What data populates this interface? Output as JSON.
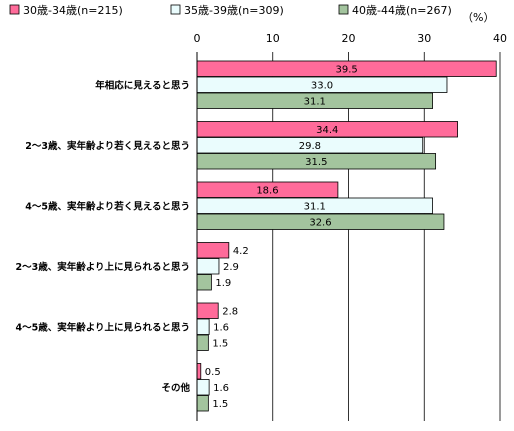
{
  "chart_data": {
    "type": "bar",
    "orientation": "horizontal",
    "unit": "（%）",
    "xlim": [
      0,
      40
    ],
    "xticks": [
      "0",
      "10",
      "20",
      "30",
      "40"
    ],
    "categories": [
      "年相応に見えると思う",
      "2～3歳、実年齢より若く見えると思う",
      "4～5歳、実年齢より若く見えると思う",
      "2～3歳、実年齢より上に見られると思う",
      "4～5歳、実年齢より上に見られると思う",
      "その他"
    ],
    "series": [
      {
        "name": "30歳-34歳(n=215)",
        "values": [
          39.5,
          34.4,
          18.6,
          4.2,
          2.8,
          0.5
        ],
        "color": "#ff6b9a"
      },
      {
        "name": "35歳-39歳(n=309)",
        "values": [
          33.0,
          29.8,
          31.1,
          2.9,
          1.6,
          1.6
        ],
        "color": "#eafcfd"
      },
      {
        "name": "40歳-44歳(n=267)",
        "values": [
          31.1,
          31.5,
          32.6,
          1.9,
          1.5,
          1.5
        ],
        "color": "#a3c49e"
      }
    ],
    "legend_position": "top",
    "grid": "vertical"
  }
}
